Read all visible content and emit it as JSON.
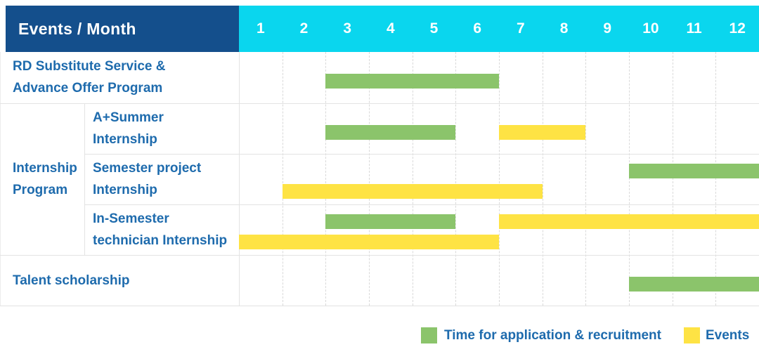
{
  "header": {
    "events_month_label": "Events / Month"
  },
  "colors": {
    "header_bg": "#144f8c",
    "month_header_bg": "#0ad6ee",
    "application_green": "#8bc46b",
    "events_yellow": "#fee344",
    "label_text": "#1e6bad",
    "grid_line": "#e3e3e3",
    "month_grid_line": "#d9d9d9"
  },
  "legend": {
    "application_label": "Time for application & recruitment",
    "events_label": "Events"
  },
  "chart_data": {
    "type": "gantt",
    "title": "Events / Month",
    "months": [
      "1",
      "2",
      "3",
      "4",
      "5",
      "6",
      "7",
      "8",
      "9",
      "10",
      "11",
      "12"
    ],
    "x_range": [
      1,
      12
    ],
    "grid": "dashed-vertical-month-lines",
    "legend_position": "bottom-right",
    "legend": [
      {
        "kind": "application",
        "label": "Time for application & recruitment",
        "color": "#8bc46b"
      },
      {
        "kind": "events",
        "label": "Events",
        "color": "#fee344"
      }
    ],
    "group": {
      "label": "Internship Program",
      "label_lines": [
        "Internship",
        "Program"
      ],
      "first_row": 1,
      "last_row": 3
    },
    "rows": [
      {
        "label": "RD Substitute Service & Advance Offer Program",
        "label_lines": [
          "RD Substitute Service &",
          "Advance Offer Program"
        ],
        "in_group": false,
        "bars": [
          {
            "kind": "application",
            "start_month": 3,
            "end_month": 6,
            "lane": "single"
          }
        ]
      },
      {
        "label": "A+Summer Internship",
        "label_lines": [
          "A+Summer",
          "Internship"
        ],
        "in_group": true,
        "bars": [
          {
            "kind": "application",
            "start_month": 3,
            "end_month": 5,
            "lane": "single"
          },
          {
            "kind": "events",
            "start_month": 7,
            "end_month": 8,
            "lane": "single"
          }
        ]
      },
      {
        "label": "Semester project Internship",
        "label_lines": [
          "Semester project",
          "Internship"
        ],
        "in_group": true,
        "bars": [
          {
            "kind": "application",
            "start_month": 10,
            "end_month": 12,
            "lane": "top"
          },
          {
            "kind": "events",
            "start_month": 2,
            "end_month": 7,
            "lane": "bottom"
          }
        ]
      },
      {
        "label": "In-Semester technician Internship",
        "label_lines": [
          "In-Semester",
          "technician Internship"
        ],
        "in_group": true,
        "bars": [
          {
            "kind": "application",
            "start_month": 3,
            "end_month": 5,
            "lane": "top"
          },
          {
            "kind": "events",
            "start_month": 7,
            "end_month": 12,
            "lane": "top"
          },
          {
            "kind": "events",
            "start_month": 1,
            "end_month": 6,
            "lane": "bottom"
          }
        ]
      },
      {
        "label": "Talent scholarship",
        "label_lines": [
          "Talent scholarship"
        ],
        "in_group": false,
        "bars": [
          {
            "kind": "application",
            "start_month": 10,
            "end_month": 12,
            "lane": "single"
          }
        ]
      }
    ]
  }
}
